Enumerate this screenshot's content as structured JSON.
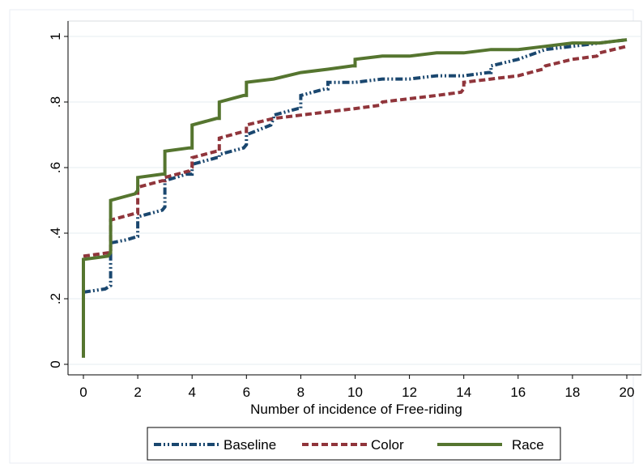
{
  "chart_data": {
    "type": "line",
    "title": "",
    "xlabel": "Number of incidence of Free-riding",
    "ylabel": "",
    "xlim": [
      0,
      20
    ],
    "ylim": [
      0,
      1
    ],
    "x_ticks": [
      "0",
      "2",
      "4",
      "6",
      "8",
      "10",
      "12",
      "14",
      "16",
      "18",
      "20"
    ],
    "y_ticks": [
      "0",
      ".2",
      ".4",
      ".6",
      ".8",
      "1"
    ],
    "grid": true,
    "legend": "bottom",
    "series": [
      {
        "name": "Baseline",
        "color": "#1a476f",
        "dash": "dash-dot",
        "points": [
          [
            0,
            0.22
          ],
          [
            0.8,
            0.23
          ],
          [
            1,
            0.24
          ],
          [
            1,
            0.37
          ],
          [
            1.6,
            0.38
          ],
          [
            2,
            0.39
          ],
          [
            2,
            0.45
          ],
          [
            2.9,
            0.47
          ],
          [
            3,
            0.48
          ],
          [
            3,
            0.56
          ],
          [
            3.8,
            0.58
          ],
          [
            4,
            0.58
          ],
          [
            4,
            0.61
          ],
          [
            4.9,
            0.63
          ],
          [
            5,
            0.63
          ],
          [
            5,
            0.64
          ],
          [
            5.9,
            0.66
          ],
          [
            6,
            0.67
          ],
          [
            6,
            0.7
          ],
          [
            6.9,
            0.73
          ],
          [
            7,
            0.75
          ],
          [
            7,
            0.76
          ],
          [
            7.9,
            0.78
          ],
          [
            8,
            0.78
          ],
          [
            8,
            0.82
          ],
          [
            8.9,
            0.84
          ],
          [
            9,
            0.84
          ],
          [
            9,
            0.86
          ],
          [
            10,
            0.86
          ],
          [
            11,
            0.87
          ],
          [
            12,
            0.87
          ],
          [
            13,
            0.88
          ],
          [
            14,
            0.88
          ],
          [
            14.9,
            0.89
          ],
          [
            15,
            0.89
          ],
          [
            15,
            0.91
          ],
          [
            16,
            0.93
          ],
          [
            17,
            0.96
          ],
          [
            18,
            0.97
          ],
          [
            19,
            0.98
          ],
          [
            20,
            0.99
          ]
        ]
      },
      {
        "name": "Color",
        "color": "#90353b",
        "dash": "dash",
        "points": [
          [
            0,
            0.33
          ],
          [
            0.9,
            0.34
          ],
          [
            1,
            0.34
          ],
          [
            1,
            0.44
          ],
          [
            1.9,
            0.46
          ],
          [
            2,
            0.46
          ],
          [
            2,
            0.54
          ],
          [
            2.9,
            0.56
          ],
          [
            3,
            0.56
          ],
          [
            3,
            0.57
          ],
          [
            3.9,
            0.59
          ],
          [
            4,
            0.6
          ],
          [
            4,
            0.63
          ],
          [
            4.9,
            0.65
          ],
          [
            5,
            0.65
          ],
          [
            5,
            0.69
          ],
          [
            5.9,
            0.71
          ],
          [
            6,
            0.71
          ],
          [
            6,
            0.73
          ],
          [
            7,
            0.75
          ],
          [
            8,
            0.76
          ],
          [
            9,
            0.77
          ],
          [
            10,
            0.78
          ],
          [
            10.9,
            0.79
          ],
          [
            11,
            0.8
          ],
          [
            12,
            0.81
          ],
          [
            13,
            0.82
          ],
          [
            13.9,
            0.83
          ],
          [
            14,
            0.84
          ],
          [
            14,
            0.86
          ],
          [
            15,
            0.87
          ],
          [
            16,
            0.88
          ],
          [
            16.9,
            0.9
          ],
          [
            17,
            0.91
          ],
          [
            18,
            0.93
          ],
          [
            18.9,
            0.94
          ],
          [
            19,
            0.95
          ],
          [
            20,
            0.97
          ]
        ]
      },
      {
        "name": "Race",
        "color": "#55752f",
        "dash": "solid",
        "points": [
          [
            0,
            0.02
          ],
          [
            0,
            0.32
          ],
          [
            0.9,
            0.33
          ],
          [
            1,
            0.34
          ],
          [
            1,
            0.5
          ],
          [
            1.9,
            0.52
          ],
          [
            2,
            0.53
          ],
          [
            2,
            0.57
          ],
          [
            2.9,
            0.58
          ],
          [
            3,
            0.58
          ],
          [
            3,
            0.65
          ],
          [
            3.9,
            0.66
          ],
          [
            4,
            0.66
          ],
          [
            4,
            0.73
          ],
          [
            4.9,
            0.75
          ],
          [
            5,
            0.75
          ],
          [
            5,
            0.8
          ],
          [
            5.9,
            0.82
          ],
          [
            6,
            0.82
          ],
          [
            6,
            0.86
          ],
          [
            7,
            0.87
          ],
          [
            8,
            0.89
          ],
          [
            9,
            0.9
          ],
          [
            9.9,
            0.91
          ],
          [
            10,
            0.91
          ],
          [
            10,
            0.93
          ],
          [
            11,
            0.94
          ],
          [
            12,
            0.94
          ],
          [
            13,
            0.95
          ],
          [
            14,
            0.95
          ],
          [
            15,
            0.96
          ],
          [
            16,
            0.96
          ],
          [
            17,
            0.97
          ],
          [
            18,
            0.98
          ],
          [
            19,
            0.98
          ],
          [
            20,
            0.99
          ]
        ]
      }
    ]
  }
}
